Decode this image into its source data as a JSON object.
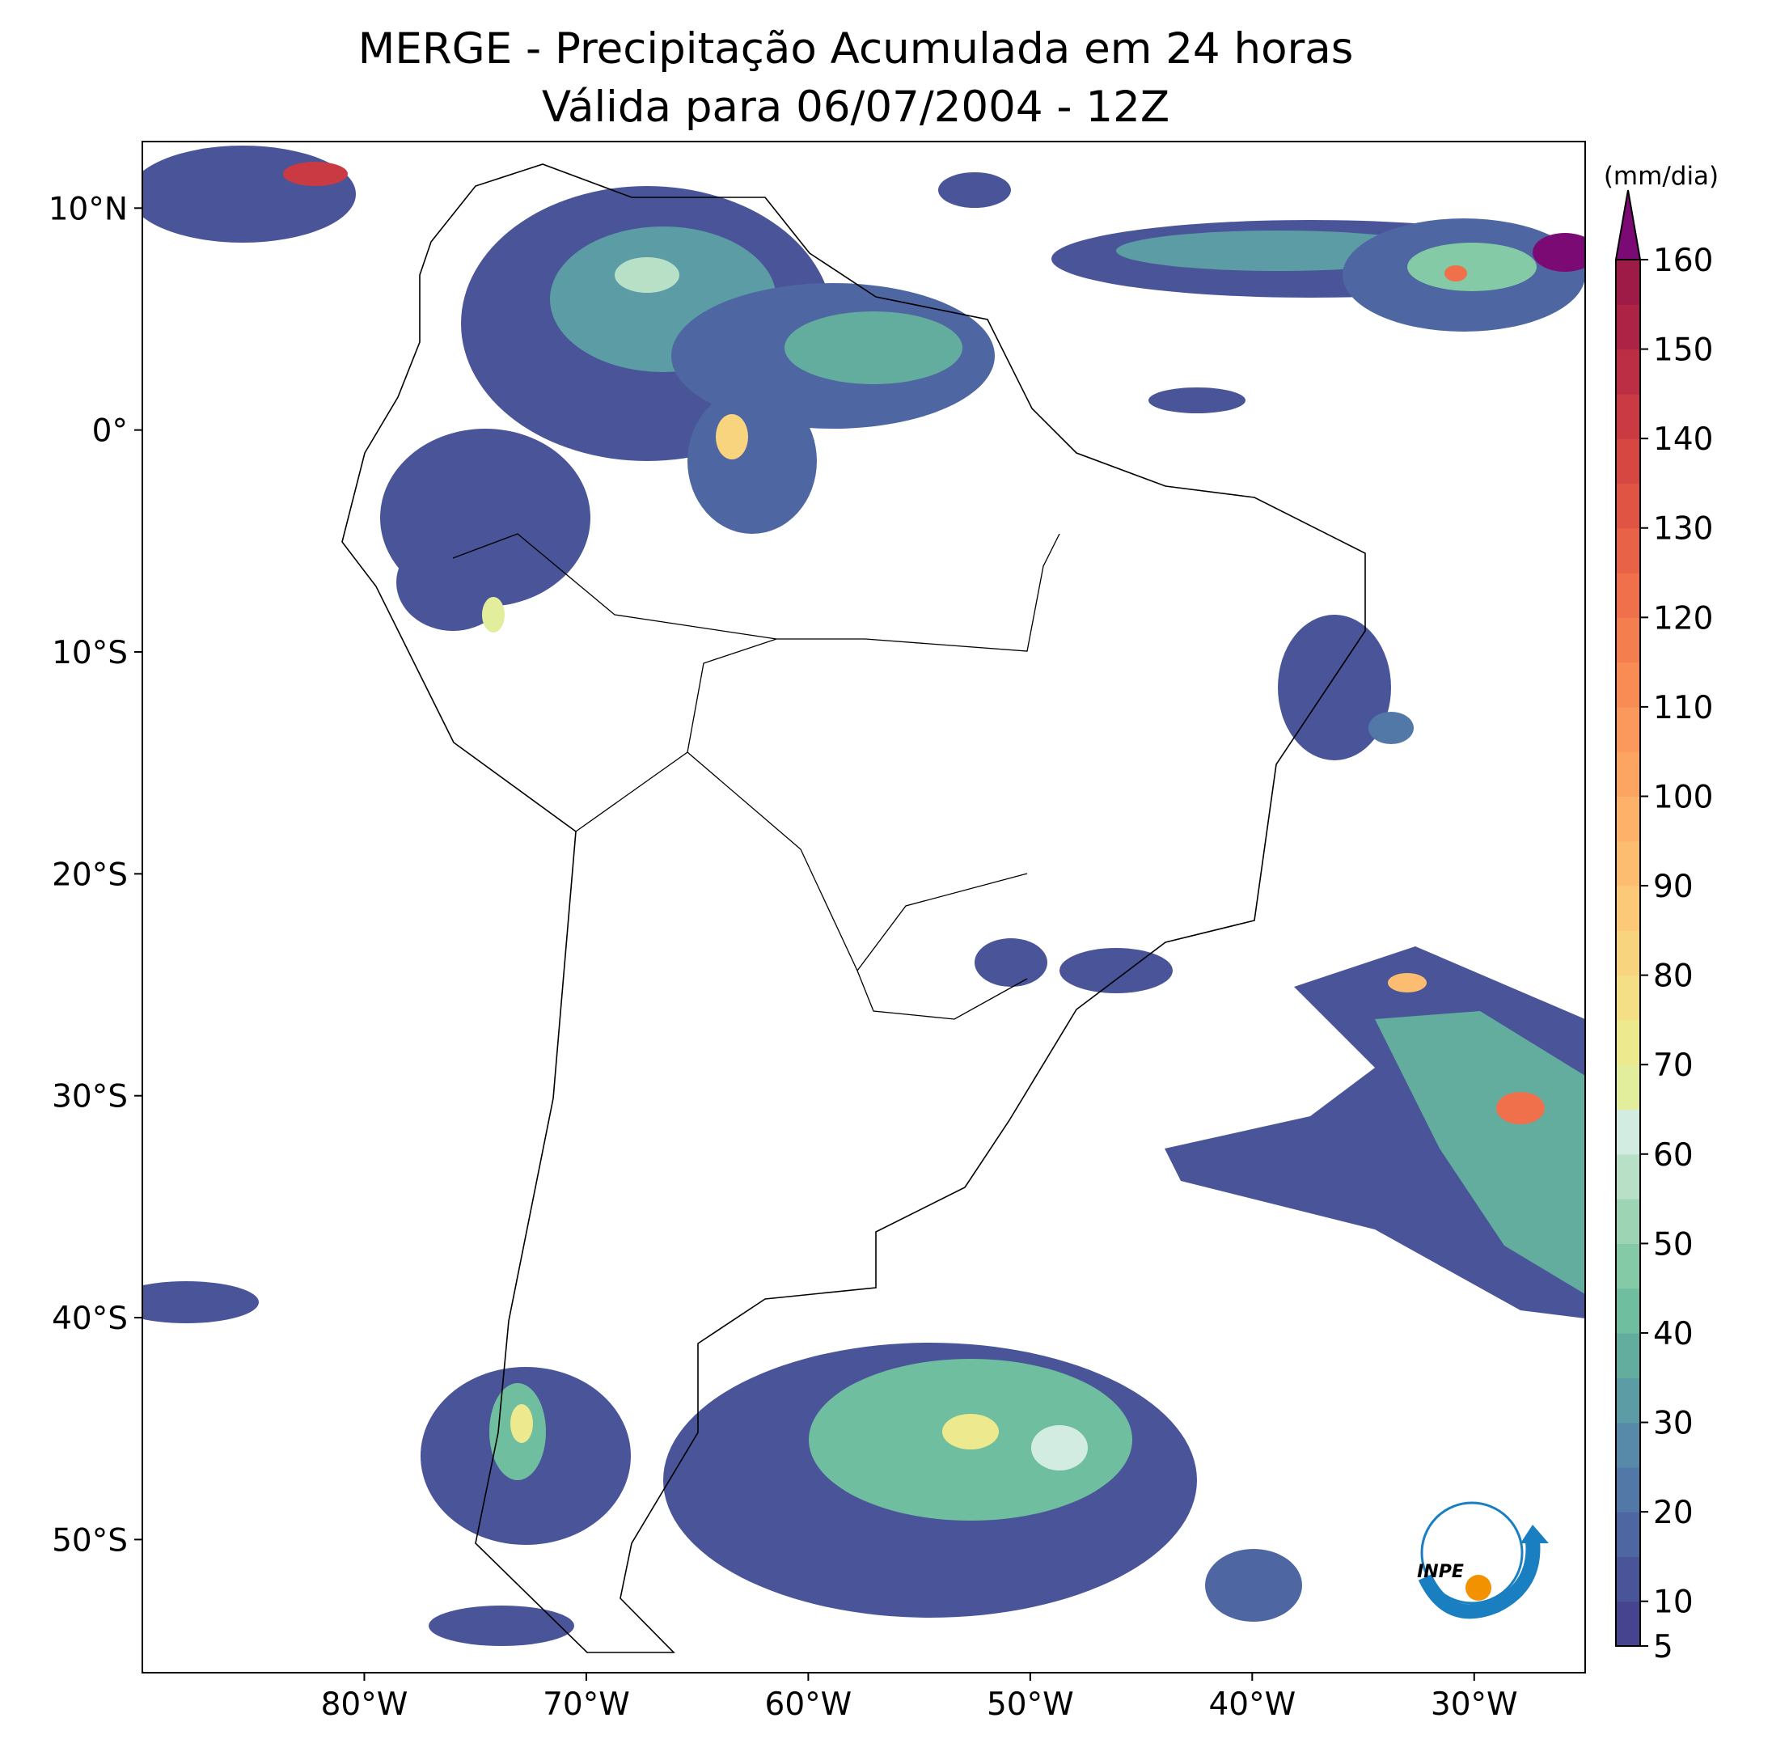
{
  "chart_data": {
    "type": "map",
    "title": [
      "MERGE - Precipitação Acumulada em 24 horas",
      "Válida para 06/07/2004 - 12Z"
    ],
    "xlim": [
      -90,
      -25
    ],
    "ylim": [
      -56,
      13
    ],
    "xticks": [
      {
        "value": -80,
        "label": "80°W"
      },
      {
        "value": -70,
        "label": "70°W"
      },
      {
        "value": -60,
        "label": "60°W"
      },
      {
        "value": -50,
        "label": "50°W"
      },
      {
        "value": -40,
        "label": "40°W"
      },
      {
        "value": -30,
        "label": "30°W"
      }
    ],
    "yticks": [
      {
        "value": 10,
        "label": "10°N"
      },
      {
        "value": 0,
        "label": "0°"
      },
      {
        "value": -10,
        "label": "10°S"
      },
      {
        "value": -20,
        "label": "20°S"
      },
      {
        "value": -30,
        "label": "30°S"
      },
      {
        "value": -40,
        "label": "40°S"
      },
      {
        "value": -50,
        "label": "50°S"
      }
    ],
    "colorbar": {
      "label": "(mm/dia)",
      "lim": [
        5,
        160
      ],
      "ticks": [
        5,
        10,
        20,
        30,
        40,
        50,
        60,
        70,
        80,
        90,
        100,
        110,
        120,
        130,
        140,
        150,
        160
      ],
      "colors": [
        "#46448f",
        "#4a5599",
        "#4e66a2",
        "#5278a8",
        "#578aa8",
        "#5c9ca5",
        "#63ad9f",
        "#6fbe9f",
        "#84caa6",
        "#9dd5b4",
        "#b7e0c7",
        "#d3ece2",
        "#e2ee9c",
        "#ede98e",
        "#f4df86",
        "#f8d47e",
        "#fbc977",
        "#fcbd70",
        "#fdb169",
        "#fca562",
        "#fb985b",
        "#f98b55",
        "#f57e4f",
        "#ef704b",
        "#e86247",
        "#e05444",
        "#d64742",
        "#ca3a42",
        "#bc2e44",
        "#ad2346",
        "#9e1a47"
      ],
      "extend_color": "#7b0a74"
    },
    "logo": "INPE"
  }
}
